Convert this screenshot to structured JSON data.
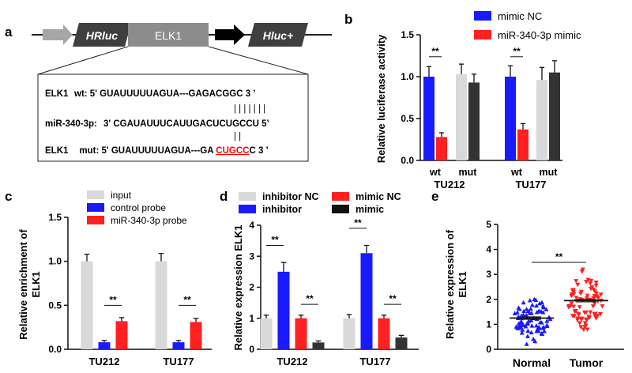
{
  "colors": {
    "blue": "#1a1aff",
    "red": "#ff2020",
    "gray_light": "#d9d9d9",
    "gray_dark": "#333333",
    "arrow_gray": "#a6a6a6",
    "box_dark": "#3f3f3f",
    "box_mid": "#8c8c8c",
    "mut_red": "#ff0000"
  },
  "panel_a": {
    "letter": "a",
    "construct": {
      "hrluc": "HRluc",
      "elk1": "ELK1",
      "hluc": "Hluc+"
    },
    "seq": {
      "wt_label": "ELK1",
      "wt_text": "wt: 5' GUAUUUUUAGUA---GAGACGGC 3 ’",
      "pair_bars_1": "| | | | | | |",
      "mir_label": "miR-340-3p:",
      "mir_text": "3' CGAUAUUUCAUUGACUCUGCCU 5’",
      "pair_bars_2": "| |",
      "mut_label": "ELK1",
      "mut_text_a": "mut: 5' GUAUUUUUAGUA---GA ",
      "mut_text_b": "CUGCC",
      "mut_text_c": "C 3 ’"
    }
  },
  "panel_b": {
    "letter": "b",
    "legend": [
      "mimic NC",
      "miR-340-3p mimic"
    ],
    "chart_data": {
      "type": "bar",
      "ylabel": "Relative luciferase activity",
      "ylim": [
        0,
        1.5
      ],
      "yticks": [
        "0.0",
        "0.5",
        "1.0",
        "1.5"
      ],
      "groups": [
        "TU212",
        "TU177"
      ],
      "subcategories": [
        "wt",
        "mut"
      ],
      "series": [
        {
          "name": "mimic NC",
          "values": [
            1.0,
            1.03,
            1.0,
            0.96
          ]
        },
        {
          "name": "miR-340-3p mimic",
          "values": [
            0.28,
            0.93,
            0.37,
            1.05
          ]
        }
      ],
      "errors": [
        [
          0.12,
          0.12,
          0.13,
          0.15
        ],
        [
          0.05,
          0.1,
          0.07,
          0.14
        ]
      ],
      "significance": [
        "**",
        "**"
      ]
    }
  },
  "panel_c": {
    "letter": "c",
    "legend": [
      "input",
      "control probe",
      "miR-340-3p probe"
    ],
    "chart_data": {
      "type": "bar",
      "ylabel": "Relative enrichment of ELK1",
      "ylim": [
        0,
        1.5
      ],
      "yticks": [
        "0.0",
        "0.5",
        "1.0",
        "1.5"
      ],
      "categories": [
        "TU212",
        "TU177"
      ],
      "series": [
        {
          "name": "input",
          "values": [
            1.0,
            1.0
          ]
        },
        {
          "name": "control probe",
          "values": [
            0.08,
            0.08
          ]
        },
        {
          "name": "miR-340-3p probe",
          "values": [
            0.32,
            0.31
          ]
        }
      ],
      "errors": [
        [
          0.08,
          0.09
        ],
        [
          0.02,
          0.02
        ],
        [
          0.04,
          0.04
        ]
      ],
      "significance": [
        "**",
        "**"
      ]
    }
  },
  "panel_d": {
    "letter": "d",
    "legend": [
      "inhibitor NC",
      "mimic NC",
      "inhibitor",
      "mimic"
    ],
    "chart_data": {
      "type": "bar",
      "ylabel": "Relative expression ELK1",
      "ylim": [
        0,
        4
      ],
      "yticks": [
        "0",
        "1",
        "2",
        "3",
        "4"
      ],
      "categories": [
        "TU212",
        "TU177"
      ],
      "series": [
        {
          "name": "inhibitor NC",
          "values": [
            1.0,
            1.0
          ]
        },
        {
          "name": "inhibitor",
          "values": [
            2.5,
            3.1
          ]
        },
        {
          "name": "mimic NC",
          "values": [
            1.0,
            1.0
          ]
        },
        {
          "name": "mimic",
          "values": [
            0.22,
            0.38
          ]
        }
      ],
      "errors": [
        [
          0.1,
          0.12
        ],
        [
          0.3,
          0.25
        ],
        [
          0.1,
          0.1
        ],
        [
          0.05,
          0.07
        ]
      ],
      "significance": [
        "**",
        "**",
        "**",
        "**"
      ]
    }
  },
  "panel_e": {
    "letter": "e",
    "chart_data": {
      "type": "scatter",
      "ylabel": "Relative expression of ELK1",
      "ylim": [
        0,
        5
      ],
      "yticks": [
        "0",
        "1",
        "2",
        "3",
        "4",
        "5"
      ],
      "categories": [
        "Normal",
        "Tumor"
      ],
      "means": [
        1.25,
        1.95
      ],
      "sem": [
        0.05,
        0.05
      ],
      "n_points": [
        80,
        80
      ],
      "range": [
        [
          0.1,
          2.0
        ],
        [
          0.8,
          3.2
        ]
      ],
      "significance": "**"
    }
  }
}
